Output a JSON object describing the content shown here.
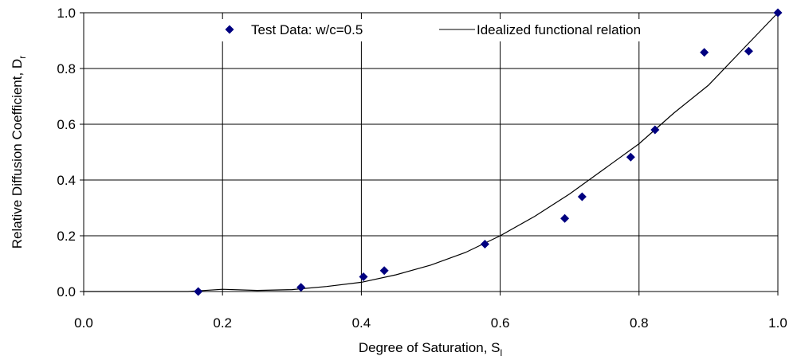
{
  "chart_data": {
    "type": "scatter",
    "xlabel": "Degree of Saturation,  S",
    "xlabel_sub": "l",
    "ylabel": "Relative Diffusion Coefficient, D",
    "ylabel_sub": "r",
    "xlim": [
      0.0,
      1.0
    ],
    "ylim": [
      0.0,
      1.0
    ],
    "x_ticks": [
      "0.0",
      "0.2",
      "0.4",
      "0.6",
      "0.8",
      "1.0"
    ],
    "y_ticks": [
      "0.0",
      "0.2",
      "0.4",
      "0.6",
      "0.8",
      "1.0"
    ],
    "x_tick_values": [
      0.0,
      0.2,
      0.4,
      0.6,
      0.8,
      1.0
    ],
    "y_tick_values": [
      0.0,
      0.2,
      0.4,
      0.6,
      0.8,
      1.0
    ],
    "grid": "vertical and horizontal major",
    "legend_position": "top",
    "series": [
      {
        "name": "Test Data: w/c=0.5",
        "kind": "scatter",
        "marker": "diamond",
        "color": "#000080",
        "x": [
          0.165,
          0.313,
          0.403,
          0.433,
          0.578,
          0.693,
          0.718,
          0.788,
          0.823,
          0.894,
          0.958,
          1.0
        ],
        "y": [
          0.0,
          0.015,
          0.053,
          0.075,
          0.17,
          0.262,
          0.34,
          0.482,
          0.58,
          0.858,
          0.862,
          1.0
        ]
      },
      {
        "name": "Idealized functional relation",
        "kind": "line",
        "color": "#000000",
        "x": [
          0.0,
          0.1,
          0.15,
          0.2,
          0.25,
          0.3,
          0.35,
          0.4,
          0.45,
          0.5,
          0.55,
          0.6,
          0.65,
          0.7,
          0.75,
          0.8,
          0.85,
          0.9,
          0.95,
          1.0
        ],
        "y": [
          0.0,
          0.0,
          0.0,
          0.008,
          0.004,
          0.007,
          0.018,
          0.033,
          0.06,
          0.095,
          0.14,
          0.2,
          0.27,
          0.35,
          0.44,
          0.53,
          0.64,
          0.74,
          0.87,
          1.0
        ]
      }
    ]
  }
}
